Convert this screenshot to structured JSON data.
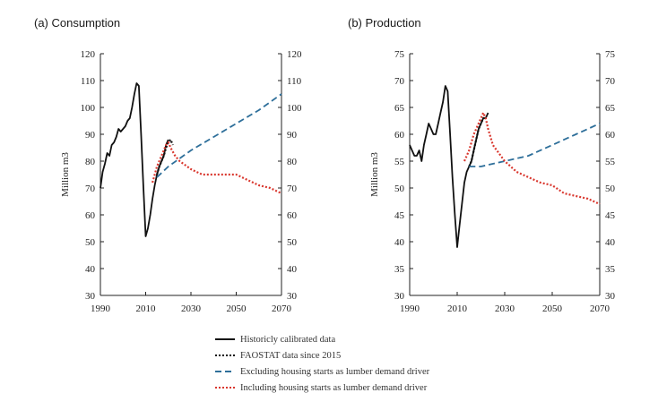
{
  "panels": {
    "a_title": "(a) Consumption",
    "b_title": "(b) Production"
  },
  "colors": {
    "historical": "#111111",
    "faostat": "#111111",
    "excluding": "#2e6f9a",
    "including": "#d9372e"
  },
  "chart_data": [
    {
      "type": "line",
      "title": "(a) Consumption",
      "xlabel": "",
      "ylabel": "Million m3",
      "xlim": [
        1990,
        2070
      ],
      "ylim": [
        30,
        120
      ],
      "x_ticks": [
        1990,
        2010,
        2030,
        2050,
        2070
      ],
      "y_ticks": [
        30,
        40,
        50,
        60,
        70,
        80,
        90,
        100,
        110,
        120
      ],
      "right_axis_ticks": [
        30,
        40,
        50,
        60,
        70,
        80,
        90,
        100,
        110,
        120
      ],
      "series": [
        {
          "name": "Historicly calibrated data",
          "style": "solid",
          "x": [
            1990,
            1991,
            1992,
            1993,
            1994,
            1995,
            1996,
            1997,
            1998,
            1999,
            2000,
            2001,
            2002,
            2003,
            2004,
            2005,
            2006,
            2007,
            2008,
            2009,
            2010,
            2011,
            2012,
            2013,
            2014,
            2015,
            2016,
            2017,
            2018,
            2019,
            2020
          ],
          "y": [
            70,
            76,
            79,
            83,
            82,
            86,
            87,
            89,
            92,
            91,
            92,
            93,
            95,
            96,
            100,
            105,
            109,
            108,
            90,
            70,
            52,
            55,
            60,
            66,
            71,
            75,
            78,
            80,
            82,
            86,
            88
          ]
        },
        {
          "name": "FAOSTAT data since 2015",
          "style": "dotted",
          "x": [
            2015,
            2016,
            2017,
            2018,
            2019,
            2020,
            2021,
            2022
          ],
          "y": [
            75,
            78,
            80,
            82,
            85,
            87,
            88,
            86
          ]
        },
        {
          "name": "Excluding housing starts as lumber demand driver",
          "style": "dashed",
          "x": [
            2015,
            2020,
            2030,
            2040,
            2050,
            2060,
            2070
          ],
          "y": [
            74,
            78,
            84,
            89,
            94,
            99,
            105
          ]
        },
        {
          "name": "Including housing starts as lumber demand driver",
          "style": "dotted",
          "x": [
            2013,
            2015,
            2017,
            2019,
            2020,
            2021,
            2023,
            2025,
            2030,
            2035,
            2040,
            2045,
            2050,
            2055,
            2060,
            2065,
            2070
          ],
          "y": [
            72,
            78,
            82,
            86,
            87,
            85,
            82,
            80,
            77,
            75,
            75,
            75,
            75,
            73,
            71,
            70,
            68
          ]
        }
      ]
    },
    {
      "type": "line",
      "title": "(b) Production",
      "xlabel": "",
      "ylabel": "Million m3",
      "xlim": [
        1990,
        2070
      ],
      "ylim": [
        30,
        75
      ],
      "x_ticks": [
        1990,
        2010,
        2030,
        2050,
        2070
      ],
      "y_ticks": [
        30,
        35,
        40,
        45,
        50,
        55,
        60,
        65,
        70,
        75
      ],
      "right_axis_ticks": [
        30,
        35,
        40,
        45,
        50,
        55,
        60,
        65,
        70,
        75
      ],
      "series": [
        {
          "name": "Historicly calibrated data",
          "style": "solid",
          "x": [
            1990,
            1991,
            1992,
            1993,
            1994,
            1995,
            1996,
            1997,
            1998,
            1999,
            2000,
            2001,
            2002,
            2003,
            2004,
            2005,
            2006,
            2007,
            2008,
            2009,
            2010,
            2011,
            2012,
            2013,
            2014,
            2015,
            2016,
            2017,
            2018,
            2019,
            2020,
            2021,
            2022,
            2023
          ],
          "y": [
            58,
            57,
            56,
            56,
            57,
            55,
            58,
            60,
            62,
            61,
            60,
            60,
            62,
            64,
            66,
            69,
            68,
            60,
            52,
            45,
            39,
            43,
            47,
            51,
            53,
            54,
            55,
            57,
            59,
            61,
            62,
            63,
            63,
            64
          ]
        },
        {
          "name": "FAOSTAT data since 2015",
          "style": "dotted",
          "x": [
            2015,
            2016,
            2017,
            2018,
            2019,
            2020,
            2021,
            2022
          ],
          "y": [
            54,
            55,
            57,
            59,
            61,
            62,
            63,
            63
          ]
        },
        {
          "name": "Excluding housing starts as lumber demand driver",
          "style": "dashed",
          "x": [
            2015,
            2020,
            2030,
            2040,
            2050,
            2060,
            2070
          ],
          "y": [
            54,
            54,
            55,
            56,
            58,
            60,
            62
          ]
        },
        {
          "name": "Including housing starts as lumber demand driver",
          "style": "dotted",
          "x": [
            2013,
            2015,
            2017,
            2019,
            2020,
            2021,
            2022,
            2023,
            2025,
            2030,
            2035,
            2040,
            2045,
            2050,
            2055,
            2060,
            2065,
            2070
          ],
          "y": [
            55,
            57,
            60,
            62,
            63,
            64,
            63,
            61,
            58,
            55,
            53,
            52,
            51,
            50.5,
            49,
            48.5,
            48,
            47
          ]
        }
      ]
    }
  ],
  "legend": [
    {
      "label": "Historicly calibrated data",
      "key": "historical",
      "style": "solid"
    },
    {
      "label": "FAOSTAT data since 2015",
      "key": "faostat",
      "style": "dotted"
    },
    {
      "label": "Excluding housing starts as lumber demand driver",
      "key": "excluding",
      "style": "dashed"
    },
    {
      "label": "Including housing starts as lumber demand driver",
      "key": "including",
      "style": "dotted"
    }
  ]
}
